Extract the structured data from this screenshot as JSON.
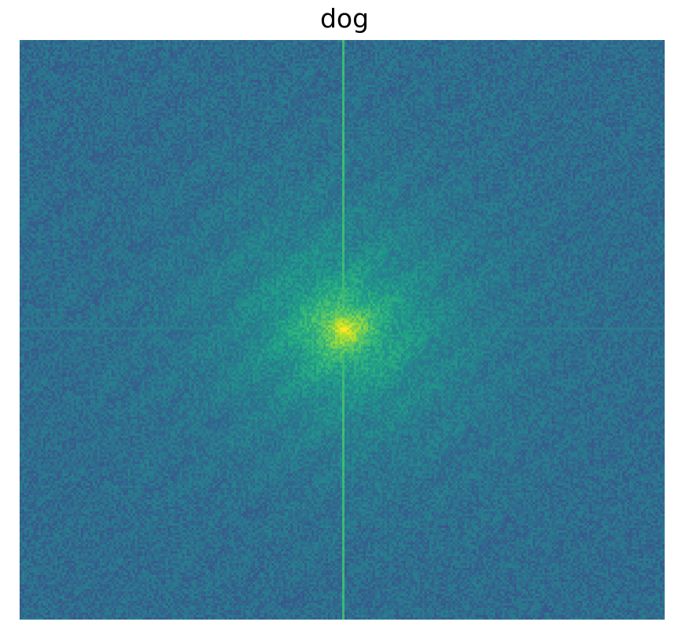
{
  "figure": {
    "title": "dog"
  },
  "chart_data": {
    "type": "heatmap",
    "title": "dog",
    "xlabel": "",
    "ylabel": "",
    "axes_visible": false,
    "grid": false,
    "colormap": "viridis",
    "colormap_stops": [
      "#440154",
      "#482878",
      "#3e4989",
      "#31688e",
      "#26828e",
      "#1f9e89",
      "#35b779",
      "#6ece58",
      "#b5de2b",
      "#fde725"
    ],
    "background_color": "#3b528b",
    "peak_color": "#fde725",
    "vertical_line_color": "#22a884",
    "description_values": {
      "peak_intensity": 1.0,
      "background_intensity": 0.35,
      "vertical_axis_line_intensity": 0.68,
      "horizontal_axis_line_intensity": 0.42
    }
  }
}
